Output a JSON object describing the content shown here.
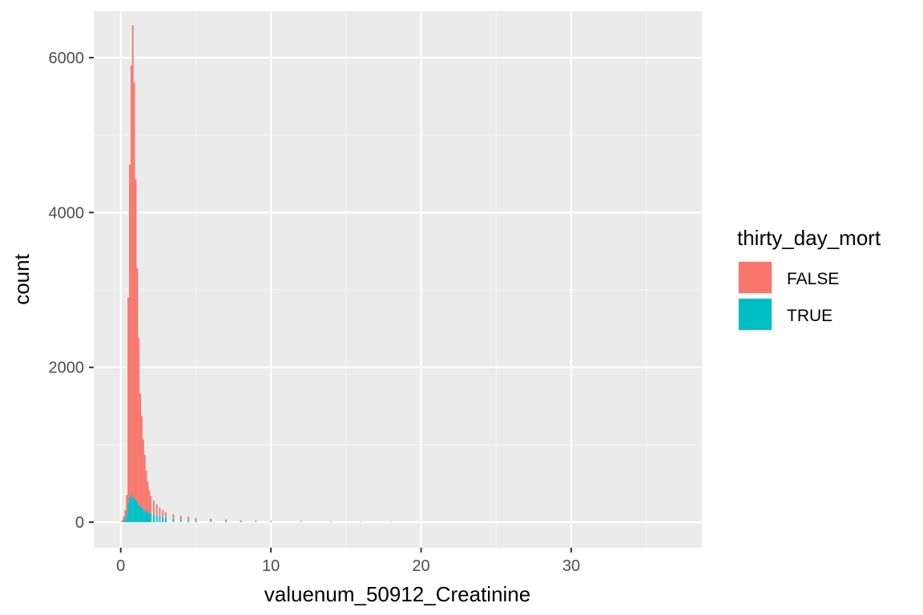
{
  "chart_data": {
    "type": "bar",
    "subtype": "stacked-histogram",
    "xlabel": "valuenum_50912_Creatinine",
    "ylabel": "count",
    "xlim": [
      -1.8,
      38.7
    ],
    "ylim": [
      -330,
      6600
    ],
    "x_ticks": [
      0,
      10,
      20,
      30
    ],
    "x_tick_labels": [
      "0",
      "10",
      "20",
      "30"
    ],
    "y_ticks": [
      0,
      2000,
      4000,
      6000
    ],
    "y_tick_labels": [
      "0",
      "2000",
      "4000",
      "6000"
    ],
    "grid": true,
    "bin_width": 0.1,
    "legend": {
      "title": "thirty_day_mort",
      "placement": "right",
      "entries": [
        "FALSE",
        "TRUE"
      ]
    },
    "colors": {
      "FALSE": "#F8766D",
      "TRUE": "#00BFC4",
      "panel_background": "#EBEBEB",
      "grid_major": "#FFFFFF",
      "grid_minor": "#F5F5F5"
    },
    "series": [
      {
        "name": "FALSE",
        "x": [
          0.1,
          0.2,
          0.3,
          0.4,
          0.5,
          0.6,
          0.7,
          0.8,
          0.9,
          1.0,
          1.1,
          1.2,
          1.3,
          1.4,
          1.5,
          1.6,
          1.7,
          1.8,
          1.9,
          2.0,
          2.2,
          2.4,
          2.6,
          2.8,
          3.0,
          3.5,
          4.0,
          4.5,
          5.0,
          6.0,
          7.0,
          8.0,
          9.0,
          10.0,
          12.0,
          14.0,
          16.0,
          18.0,
          20.0
        ],
        "values": [
          20,
          60,
          120,
          250,
          2650,
          4300,
          5550,
          6090,
          5370,
          4150,
          3020,
          2150,
          1450,
          1180,
          900,
          720,
          530,
          390,
          290,
          230,
          180,
          140,
          110,
          90,
          70,
          50,
          45,
          40,
          30,
          25,
          20,
          15,
          12,
          10,
          8,
          6,
          5,
          4,
          3
        ]
      },
      {
        "name": "TRUE",
        "x": [
          0.1,
          0.2,
          0.3,
          0.4,
          0.5,
          0.6,
          0.7,
          0.8,
          0.9,
          1.0,
          1.1,
          1.2,
          1.3,
          1.4,
          1.5,
          1.6,
          1.7,
          1.8,
          1.9,
          2.0,
          2.2,
          2.4,
          2.6,
          2.8,
          3.0,
          3.5,
          4.0,
          4.5,
          5.0,
          6.0,
          7.0,
          8.0,
          9.0,
          10.0,
          12.0,
          14.0,
          16.0,
          18.0,
          20.0
        ],
        "values": [
          5,
          15,
          40,
          100,
          250,
          320,
          350,
          330,
          310,
          280,
          260,
          230,
          210,
          190,
          170,
          150,
          140,
          130,
          120,
          110,
          100,
          90,
          80,
          70,
          60,
          50,
          40,
          30,
          25,
          20,
          15,
          10,
          8,
          6,
          5,
          4,
          3,
          2,
          1
        ]
      }
    ]
  }
}
